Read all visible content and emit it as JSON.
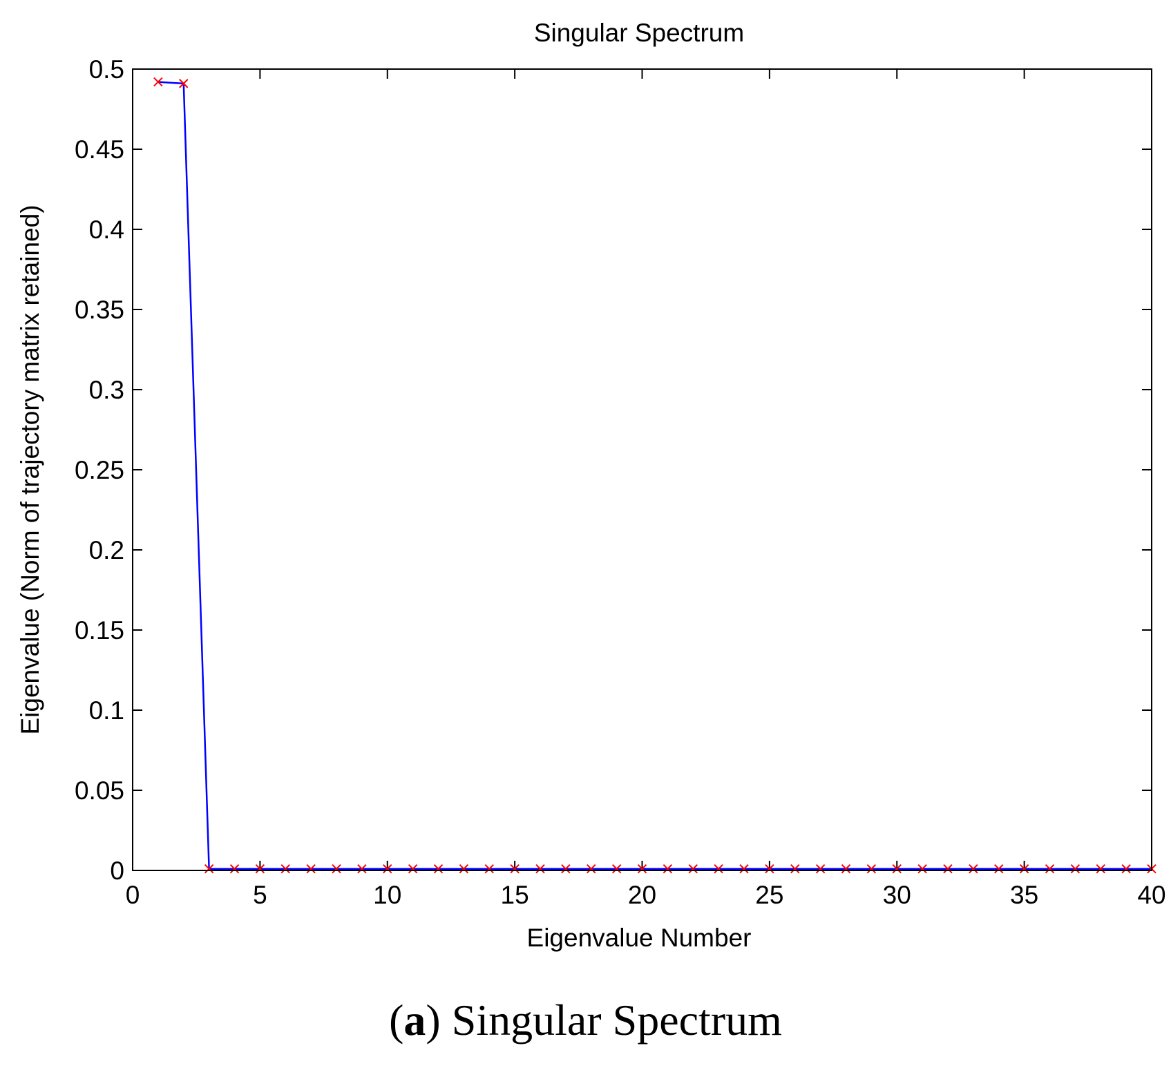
{
  "chart_data": {
    "type": "line",
    "title": "Singular Spectrum",
    "xlabel": "Eigenvalue Number",
    "ylabel": "Eigenvalue (Norm of trajectory matrix retained)",
    "xlim": [
      0,
      40
    ],
    "ylim": [
      0,
      0.5
    ],
    "xticks": [
      0,
      5,
      10,
      15,
      20,
      25,
      30,
      35,
      40
    ],
    "yticks": [
      0,
      0.05,
      0.1,
      0.15,
      0.2,
      0.25,
      0.3,
      0.35,
      0.4,
      0.45,
      0.5
    ],
    "xtick_labels": [
      "0",
      "5",
      "10",
      "15",
      "20",
      "25",
      "30",
      "35",
      "40"
    ],
    "ytick_labels": [
      "0",
      "0.05",
      "0.1",
      "0.15",
      "0.2",
      "0.25",
      "0.3",
      "0.35",
      "0.4",
      "0.45",
      "0.5"
    ],
    "grid": false,
    "series": [
      {
        "line_color": "#0000ff",
        "marker_color": "#ff0000",
        "marker": "x",
        "x": [
          1,
          2,
          3,
          4,
          5,
          6,
          7,
          8,
          9,
          10,
          11,
          12,
          13,
          14,
          15,
          16,
          17,
          18,
          19,
          20,
          21,
          22,
          23,
          24,
          25,
          26,
          27,
          28,
          29,
          30,
          31,
          32,
          33,
          34,
          35,
          36,
          37,
          38,
          39,
          40
        ],
        "y": [
          0.492,
          0.491,
          0.001,
          0.001,
          0.001,
          0.001,
          0.001,
          0.001,
          0.001,
          0.001,
          0.001,
          0.001,
          0.001,
          0.001,
          0.001,
          0.001,
          0.001,
          0.001,
          0.001,
          0.001,
          0.001,
          0.001,
          0.001,
          0.001,
          0.001,
          0.001,
          0.001,
          0.001,
          0.001,
          0.001,
          0.001,
          0.001,
          0.001,
          0.001,
          0.001,
          0.001,
          0.001,
          0.001,
          0.001,
          0.001
        ]
      }
    ]
  },
  "caption": {
    "letter": "a",
    "text": " Singular Spectrum"
  }
}
